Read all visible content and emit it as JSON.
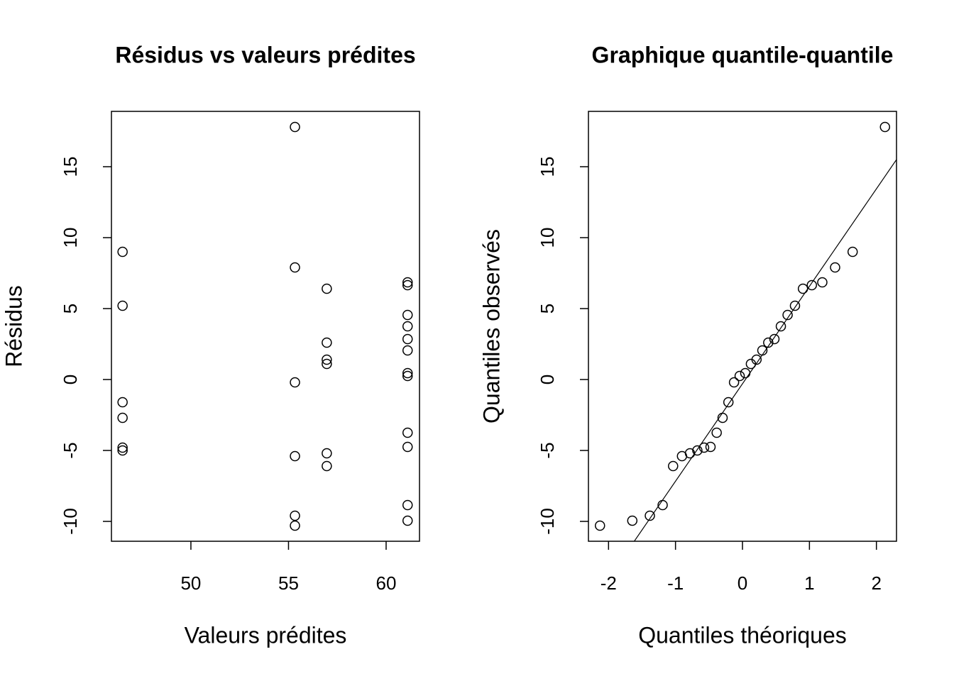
{
  "chart_data": [
    {
      "type": "scatter",
      "title": "Résidus vs valeurs prédites",
      "x_label": "Valeurs prédites",
      "y_label": "Résidus",
      "color": "#000000",
      "x": [
        46.5,
        46.5,
        46.5,
        46.5,
        46.5,
        46.5,
        55.33,
        55.33,
        55.33,
        55.33,
        55.33,
        55.33,
        56.96,
        56.96,
        56.96,
        56.96,
        56.96,
        56.96,
        61.1,
        61.1,
        61.1,
        61.1,
        61.1,
        61.1,
        61.1,
        61.1,
        61.1,
        61.1,
        61.1,
        61.1
      ],
      "values": [
        9.0,
        5.2,
        -1.6,
        -2.7,
        -4.8,
        -5.0,
        17.8,
        7.9,
        -0.2,
        -5.4,
        -9.6,
        -10.3,
        6.4,
        2.6,
        1.4,
        1.1,
        -5.2,
        -6.1,
        6.85,
        6.65,
        4.55,
        3.75,
        2.85,
        2.05,
        0.45,
        0.25,
        -3.75,
        -4.75,
        -8.85,
        -9.95
      ],
      "xlim": [
        45.93,
        61.71
      ],
      "xticks": [
        50,
        55,
        60
      ],
      "ylim": [
        -11.4,
        18.9
      ],
      "yticks": [
        -10,
        -5,
        0,
        5,
        10,
        15
      ]
    },
    {
      "type": "scatter",
      "title": "Graphique quantile-quantile",
      "x_label": "Quantiles théoriques",
      "y_label": "Quantiles observés",
      "color": "#000000",
      "x": [
        -2.128,
        -1.645,
        -1.383,
        -1.192,
        -1.036,
        -0.903,
        -0.784,
        -0.674,
        -0.573,
        -0.477,
        -0.385,
        -0.297,
        -0.21,
        -0.126,
        -0.042,
        0.042,
        0.126,
        0.21,
        0.297,
        0.385,
        0.477,
        0.573,
        0.674,
        0.784,
        0.903,
        1.036,
        1.192,
        1.383,
        1.645,
        2.128
      ],
      "values": [
        -10.3,
        -9.95,
        -9.6,
        -8.85,
        -6.1,
        -5.4,
        -5.2,
        -5.0,
        -4.8,
        -4.75,
        -3.75,
        -2.7,
        -1.6,
        -0.2,
        0.25,
        0.45,
        1.1,
        1.4,
        2.05,
        2.6,
        2.85,
        3.75,
        4.55,
        5.2,
        6.4,
        6.65,
        6.85,
        7.9,
        9.0,
        17.8
      ],
      "reference_line": {
        "slope": 6.87,
        "intercept": -0.3
      },
      "xlim": [
        -2.3,
        2.3
      ],
      "xticks": [
        -2,
        -1,
        0,
        1,
        2
      ],
      "ylim": [
        -11.4,
        18.9
      ],
      "yticks": [
        -10,
        -5,
        0,
        5,
        10,
        15
      ]
    }
  ]
}
